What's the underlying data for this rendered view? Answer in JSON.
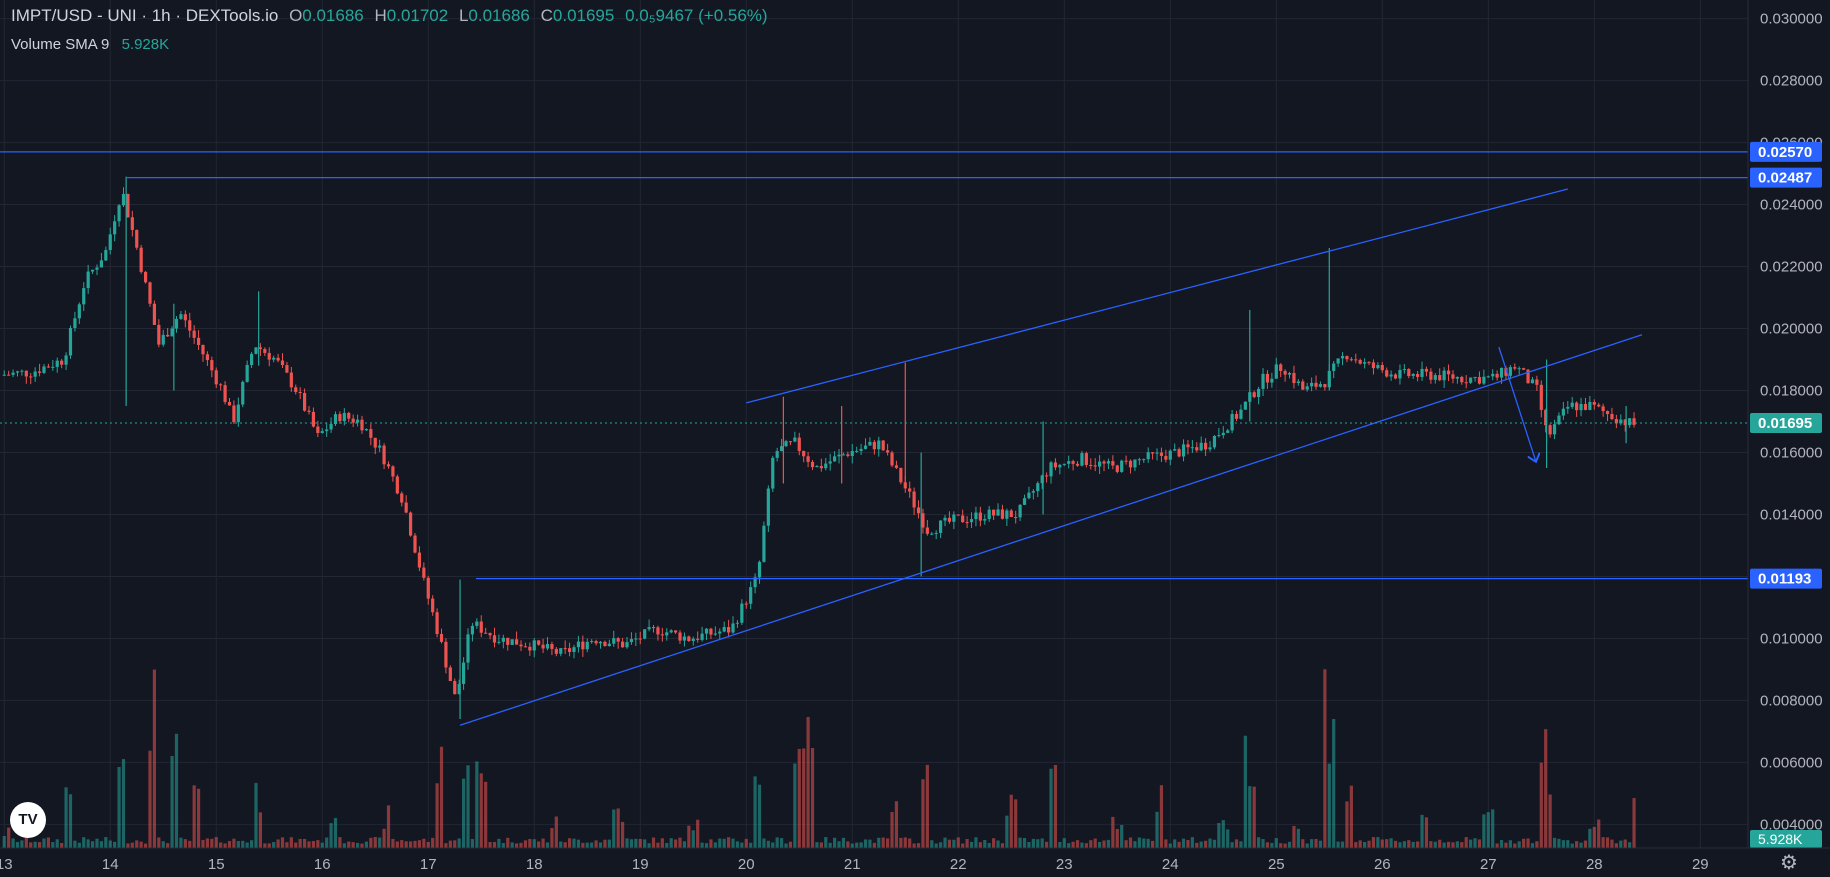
{
  "legend": {
    "symbol": "IMPT/USD - UNI · 1h · DEXTools.io",
    "o_label": "O",
    "o": "0.01686",
    "h_label": "H",
    "h": "0.01702",
    "l_label": "L",
    "l": "0.01686",
    "c_label": "C",
    "c": "0.01695",
    "change": "0.0₅9467 (+0.56%)",
    "volume_label": "Volume SMA 9",
    "volume_value": "5.928K"
  },
  "colors": {
    "up": "#26a69a",
    "down": "#ef5350",
    "line": "#2962ff",
    "current": "#26a69a",
    "bg": "#131722",
    "grid": "#232734"
  },
  "chart_data": {
    "type": "candlestick",
    "y_ticks": [
      0.004,
      0.006,
      0.008,
      0.01,
      0.012,
      0.014,
      0.016,
      0.018,
      0.02,
      0.022,
      0.024,
      0.026,
      0.028,
      0.03
    ],
    "y_tick_labels": [
      "0.004000",
      "0.006000",
      "0.008000",
      "0.010000",
      "0.012000",
      "0.014000",
      "0.016000",
      "0.018000",
      "0.020000",
      "0.022000",
      "0.024000",
      "0.026000",
      "0.028000",
      "0.030000"
    ],
    "ylim": [
      0.0034,
      0.0306
    ],
    "x_ticks": [
      13,
      14,
      15,
      16,
      17,
      18,
      19,
      20,
      21,
      22,
      23,
      24,
      25,
      26,
      27,
      28,
      29
    ],
    "x_tick_labels": [
      "13",
      "14",
      "15",
      "16",
      "17",
      "18",
      "19",
      "20",
      "21",
      "22",
      "23",
      "24",
      "25",
      "26",
      "27",
      "28",
      "29"
    ],
    "xlim": [
      12.96,
      29.45
    ],
    "price_path": [
      [
        13.0,
        0.0185
      ],
      [
        13.3,
        0.0186
      ],
      [
        13.6,
        0.019
      ],
      [
        13.8,
        0.0215
      ],
      [
        14.0,
        0.0225
      ],
      [
        14.15,
        0.0245
      ],
      [
        14.3,
        0.0225
      ],
      [
        14.5,
        0.0195
      ],
      [
        14.7,
        0.0205
      ],
      [
        14.9,
        0.0193
      ],
      [
        15.1,
        0.018
      ],
      [
        15.2,
        0.017
      ],
      [
        15.4,
        0.0195
      ],
      [
        15.6,
        0.019
      ],
      [
        15.8,
        0.018
      ],
      [
        16.0,
        0.0165
      ],
      [
        16.2,
        0.0172
      ],
      [
        16.4,
        0.017
      ],
      [
        16.6,
        0.016
      ],
      [
        16.8,
        0.0145
      ],
      [
        17.0,
        0.0118
      ],
      [
        17.15,
        0.01
      ],
      [
        17.3,
        0.008
      ],
      [
        17.45,
        0.0105
      ],
      [
        17.7,
        0.01
      ],
      [
        18.0,
        0.0098
      ],
      [
        18.3,
        0.0095
      ],
      [
        18.6,
        0.01
      ],
      [
        18.9,
        0.0098
      ],
      [
        19.2,
        0.0103
      ],
      [
        19.5,
        0.01
      ],
      [
        19.9,
        0.0103
      ],
      [
        20.15,
        0.012
      ],
      [
        20.3,
        0.016
      ],
      [
        20.5,
        0.0163
      ],
      [
        20.7,
        0.0155
      ],
      [
        21.0,
        0.016
      ],
      [
        21.3,
        0.0163
      ],
      [
        21.6,
        0.0145
      ],
      [
        21.75,
        0.0135
      ],
      [
        22.0,
        0.0138
      ],
      [
        22.3,
        0.014
      ],
      [
        22.6,
        0.014
      ],
      [
        22.9,
        0.0155
      ],
      [
        23.2,
        0.0158
      ],
      [
        23.5,
        0.0155
      ],
      [
        23.8,
        0.0158
      ],
      [
        24.1,
        0.016
      ],
      [
        24.4,
        0.0163
      ],
      [
        24.7,
        0.0173
      ],
      [
        24.9,
        0.0183
      ],
      [
        25.1,
        0.0188
      ],
      [
        25.3,
        0.018
      ],
      [
        25.5,
        0.0183
      ],
      [
        25.7,
        0.0192
      ],
      [
        25.9,
        0.0188
      ],
      [
        26.2,
        0.0185
      ],
      [
        26.5,
        0.0185
      ],
      [
        26.8,
        0.0184
      ],
      [
        27.1,
        0.0184
      ],
      [
        27.3,
        0.0188
      ],
      [
        27.5,
        0.018
      ],
      [
        27.6,
        0.0165
      ],
      [
        27.8,
        0.0175
      ],
      [
        28.0,
        0.0175
      ],
      [
        28.2,
        0.0172
      ],
      [
        28.4,
        0.0169
      ]
    ],
    "wicks": [
      [
        14.15,
        0.0249,
        0.0175
      ],
      [
        14.6,
        0.0208,
        0.018
      ],
      [
        15.4,
        0.0212,
        0.0188
      ],
      [
        17.3,
        0.0119,
        0.0074
      ],
      [
        20.35,
        0.0178,
        0.015
      ],
      [
        20.9,
        0.0175,
        0.015
      ],
      [
        21.5,
        0.0189,
        0.015
      ],
      [
        21.65,
        0.016,
        0.012
      ],
      [
        22.8,
        0.017,
        0.014
      ],
      [
        24.75,
        0.0206,
        0.017
      ],
      [
        25.5,
        0.0226,
        0.018
      ],
      [
        27.55,
        0.019,
        0.0155
      ],
      [
        28.3,
        0.0175,
        0.0163
      ]
    ],
    "volume_pct": [
      [
        13.0,
        0.1
      ],
      [
        13.6,
        0.35
      ],
      [
        14.1,
        0.45
      ],
      [
        14.4,
        0.95
      ],
      [
        14.6,
        0.55
      ],
      [
        14.8,
        0.3
      ],
      [
        15.4,
        0.35
      ],
      [
        16.1,
        0.25
      ],
      [
        16.6,
        0.2
      ],
      [
        17.1,
        0.55
      ],
      [
        17.35,
        0.7
      ],
      [
        17.5,
        0.45
      ],
      [
        18.2,
        0.15
      ],
      [
        18.8,
        0.25
      ],
      [
        19.5,
        0.2
      ],
      [
        20.1,
        0.5
      ],
      [
        20.5,
        0.65
      ],
      [
        20.6,
        0.82
      ],
      [
        21.4,
        0.25
      ],
      [
        21.7,
        0.4
      ],
      [
        22.5,
        0.3
      ],
      [
        22.9,
        0.42
      ],
      [
        23.5,
        0.2
      ],
      [
        23.9,
        0.3
      ],
      [
        24.5,
        0.2
      ],
      [
        24.75,
        0.55
      ],
      [
        25.2,
        0.15
      ],
      [
        25.5,
        0.93
      ],
      [
        25.7,
        0.3
      ],
      [
        26.4,
        0.2
      ],
      [
        27.0,
        0.2
      ],
      [
        27.55,
        0.55
      ],
      [
        28.0,
        0.15
      ],
      [
        28.4,
        0.3
      ]
    ],
    "lines": [
      {
        "kind": "horizontal",
        "y": 0.0257
      },
      {
        "kind": "segment",
        "x1": 14.15,
        "y1": 0.02487,
        "x2": 29.45,
        "y2": 0.02487
      },
      {
        "kind": "segment",
        "x1": 17.45,
        "y1": 0.01193,
        "x2": 29.45,
        "y2": 0.01193
      },
      {
        "kind": "segment",
        "x1": 20.0,
        "y1": 0.0176,
        "x2": 27.75,
        "y2": 0.0245
      },
      {
        "kind": "segment",
        "x1": 17.3,
        "y1": 0.0072,
        "x2": 28.45,
        "y2": 0.0198
      },
      {
        "kind": "arrow",
        "x1": 27.1,
        "y1": 0.0194,
        "x2": 27.45,
        "y2": 0.0157
      }
    ],
    "price_labels": [
      {
        "y": 0.0257,
        "label": "0.02570",
        "kind": "line"
      },
      {
        "y": 0.02487,
        "label": "0.02487",
        "kind": "line"
      },
      {
        "y": 0.01695,
        "label": "0.01695",
        "kind": "current"
      },
      {
        "y": 0.01193,
        "label": "0.01193",
        "kind": "line"
      }
    ],
    "volume_label": "5.928K"
  }
}
